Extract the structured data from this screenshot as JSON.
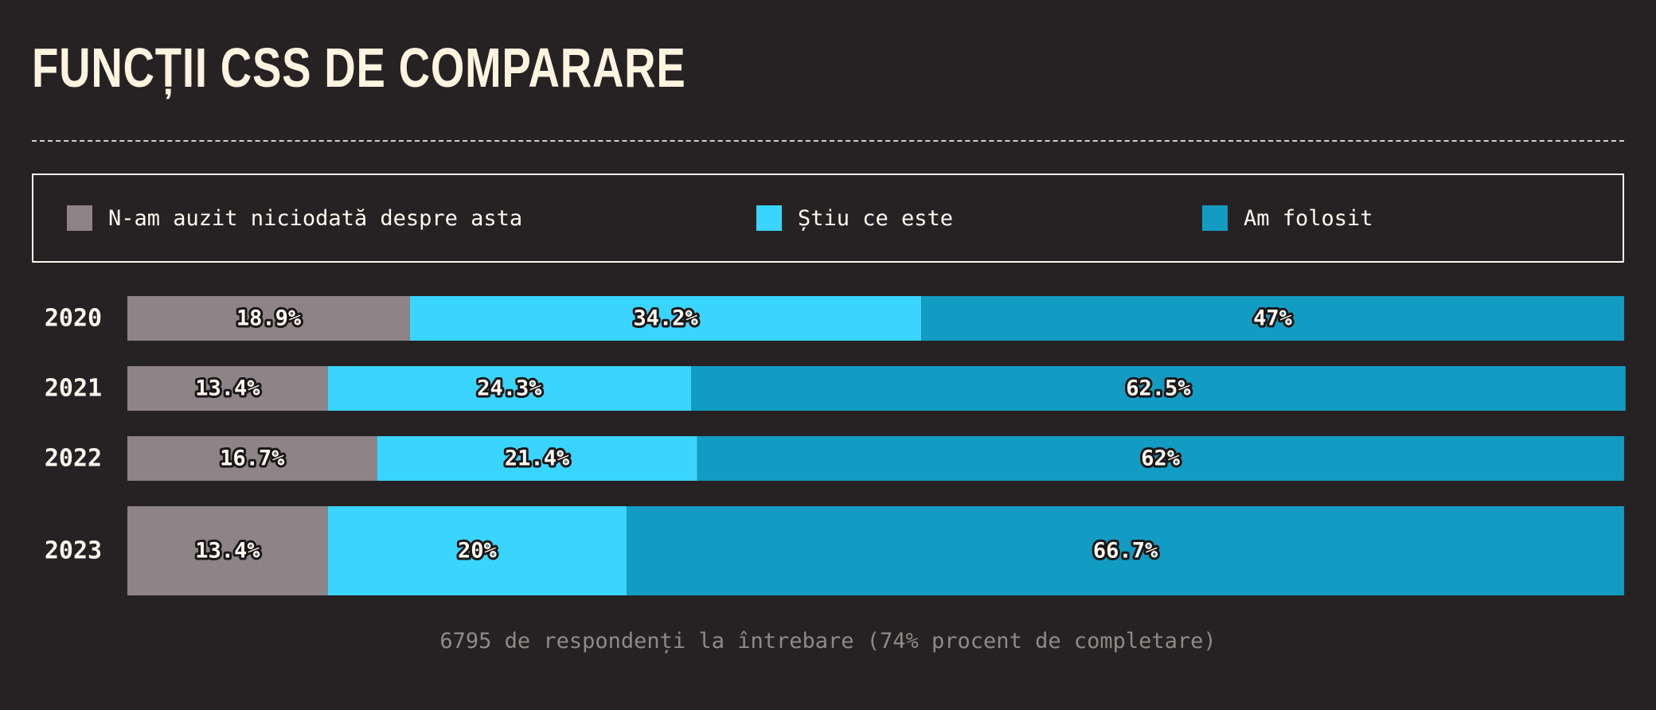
{
  "title": "FUNCȚII CSS DE COMPARARE",
  "legend": [
    {
      "label": "N-am auzit niciodată despre asta",
      "color": "#8e8386"
    },
    {
      "label": "Știu ce este",
      "color": "#39d5ff"
    },
    {
      "label": "Am folosit",
      "color": "#139cc3"
    }
  ],
  "footer": "6795 de respondenți la întrebare (74% procent de completare)",
  "chart_data": {
    "type": "bar",
    "orientation": "horizontal",
    "stacked": true,
    "categories": [
      "2020",
      "2021",
      "2022",
      "2023"
    ],
    "series": [
      {
        "name": "N-am auzit niciodată despre asta",
        "values": [
          18.9,
          13.4,
          16.7,
          13.4
        ],
        "labels": [
          "18.9%",
          "13.4%",
          "16.7%",
          "13.4%"
        ],
        "color": "#8e8386"
      },
      {
        "name": "Știu ce este",
        "values": [
          34.2,
          24.3,
          21.4,
          20.0
        ],
        "labels": [
          "34.2%",
          "24.3%",
          "21.4%",
          "20%"
        ],
        "color": "#39d5ff"
      },
      {
        "name": "Am folosit",
        "values": [
          47.0,
          62.5,
          62.0,
          66.7
        ],
        "labels": [
          "47%",
          "62.5%",
          "62%",
          "66.7%"
        ],
        "color": "#139cc3"
      }
    ],
    "xlim": [
      0,
      100
    ],
    "grid": false,
    "legend_position": "top"
  }
}
